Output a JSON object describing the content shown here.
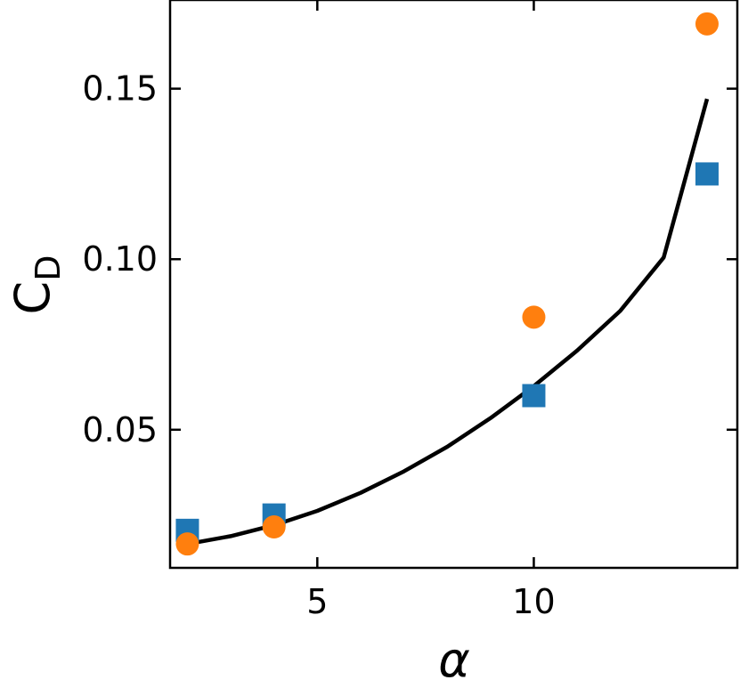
{
  "chart_data": {
    "type": "scatter",
    "xlabel": "α",
    "ylabel": "C",
    "ylabel_sub": "D",
    "xlim": [
      1.6,
      14.7
    ],
    "ylim": [
      0.0095,
      0.176
    ],
    "xticks": [
      5,
      10
    ],
    "xtick_labels": [
      "5",
      "10"
    ],
    "yticks": [
      0.05,
      0.1,
      0.15
    ],
    "ytick_labels": [
      "0.05",
      "0.10",
      "0.15"
    ],
    "grid": false,
    "series": [
      {
        "marker": "square",
        "color": "#1f77b4",
        "x": [
          2,
          4,
          10,
          14
        ],
        "y": [
          0.0205,
          0.025,
          0.06,
          0.125
        ]
      },
      {
        "marker": "circle",
        "color": "#ff7f0e",
        "x": [
          2,
          4,
          10,
          14
        ],
        "y": [
          0.0165,
          0.0215,
          0.083,
          0.169
        ]
      },
      {
        "marker": "line",
        "color": "#000000",
        "x": [
          2,
          3,
          4,
          5,
          6,
          7,
          8,
          9,
          10,
          11,
          12,
          13,
          14
        ],
        "y": [
          0.0165,
          0.0188,
          0.022,
          0.0262,
          0.0315,
          0.0378,
          0.045,
          0.0534,
          0.0628,
          0.0732,
          0.0849,
          0.1005,
          0.147
        ]
      }
    ]
  }
}
